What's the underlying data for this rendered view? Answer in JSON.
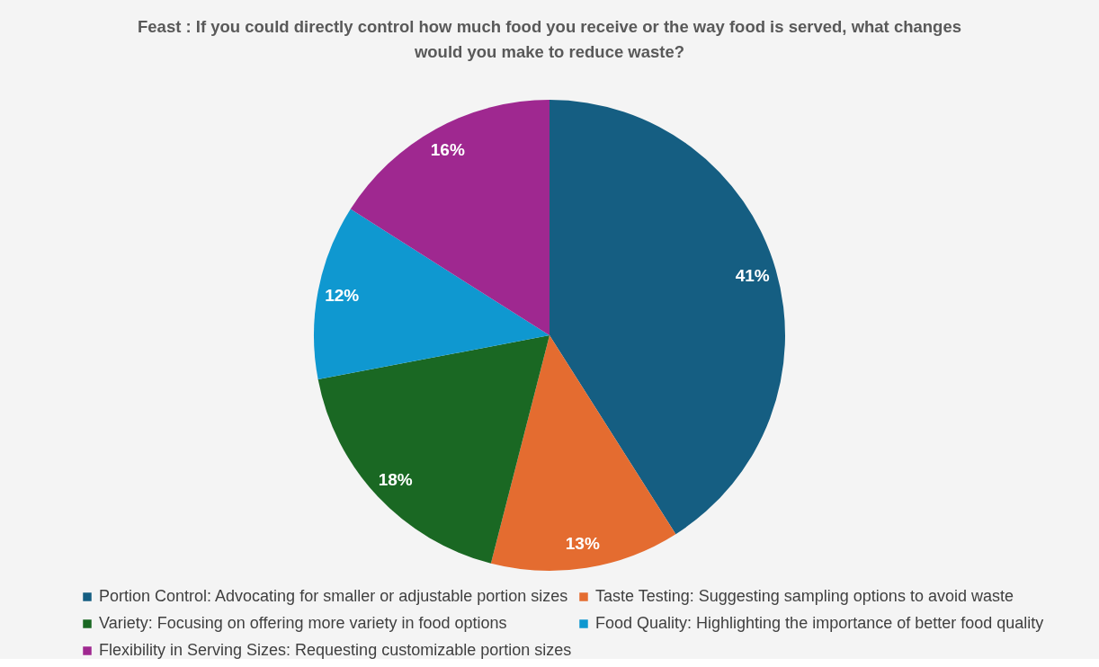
{
  "chart_data": {
    "type": "pie",
    "title": "Feast : If you could directly control how much food you receive or the way food is served, what changes would you make to reduce waste?",
    "categories": [
      "Portion Control: Advocating for smaller or adjustable portion sizes",
      "Taste Testing: Suggesting sampling options to avoid waste",
      "Variety: Focusing on offering more variety in food options",
      "Food Quality: Highlighting the importance of better food quality",
      "Flexibility in Serving Sizes: Requesting customizable portion sizes"
    ],
    "values": [
      41,
      13,
      18,
      12,
      16
    ],
    "colors": [
      "#155e82",
      "#e46c30",
      "#1a6823",
      "#0f98d0",
      "#9f2890"
    ],
    "value_labels": [
      "41%",
      "13%",
      "18%",
      "12%",
      "16%"
    ],
    "legend": "bottom"
  }
}
